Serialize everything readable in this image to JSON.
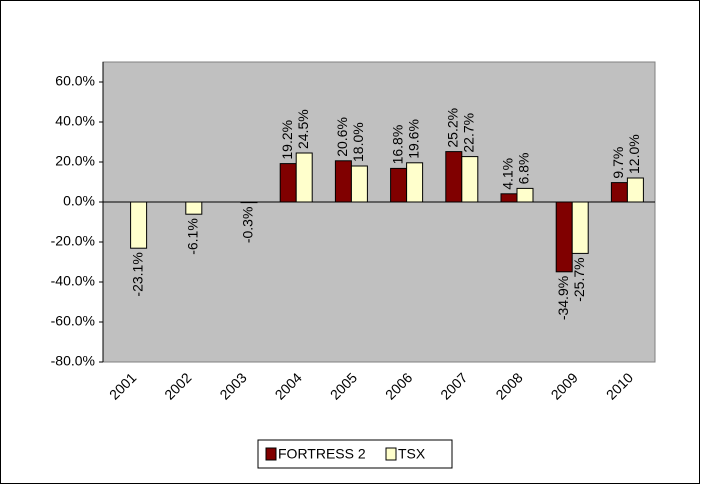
{
  "chart_data": {
    "type": "bar",
    "categories": [
      "2001",
      "2002",
      "2003",
      "2004",
      "2005",
      "2006",
      "2007",
      "2008",
      "2009",
      "2010"
    ],
    "series": [
      {
        "name": "FORTRESS 2",
        "color": "#800000",
        "values": [
          null,
          null,
          null,
          19.2,
          20.6,
          16.8,
          25.2,
          4.1,
          -34.9,
          9.7
        ],
        "value_labels": [
          null,
          null,
          null,
          "19.2%",
          "20.6%",
          "16.8%",
          "25.2%",
          "4.1%",
          "-34.9%",
          "9.7%"
        ]
      },
      {
        "name": "TSX",
        "color": "#ffffcc",
        "values": [
          -23.1,
          -6.1,
          -0.3,
          24.5,
          18.0,
          19.6,
          22.7,
          6.8,
          -25.7,
          12.0
        ],
        "value_labels": [
          "-23.1%",
          "-6.1%",
          "-0.3%",
          "24.5%",
          "18.0%",
          "19.6%",
          "22.7%",
          "6.8%",
          "-25.7%",
          "12.0%"
        ]
      }
    ],
    "ylim": [
      -80,
      70
    ],
    "yticks": [
      {
        "value": -80,
        "label": "-80.0%"
      },
      {
        "value": -60,
        "label": "-60.0%"
      },
      {
        "value": -40,
        "label": "-40.0%"
      },
      {
        "value": -20,
        "label": "-20.0%"
      },
      {
        "value": 0,
        "label": "0.0%"
      },
      {
        "value": 20,
        "label": "20.0%"
      },
      {
        "value": 40,
        "label": "40.0%"
      },
      {
        "value": 60,
        "label": "60.0%"
      }
    ],
    "legend": "bottom"
  }
}
